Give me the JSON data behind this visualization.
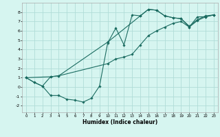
{
  "xlabel": "Humidex (Indice chaleur)",
  "bg_color": "#d6f5f0",
  "grid_color": "#b0ddd8",
  "line_color": "#1a6b60",
  "xlim": [
    -0.5,
    23.5
  ],
  "ylim": [
    -2.7,
    9.0
  ],
  "xticks": [
    0,
    1,
    2,
    3,
    4,
    5,
    6,
    7,
    8,
    9,
    10,
    11,
    12,
    13,
    14,
    15,
    16,
    17,
    18,
    19,
    20,
    21,
    22,
    23
  ],
  "yticks": [
    -2,
    -1,
    0,
    1,
    2,
    3,
    4,
    5,
    6,
    7,
    8
  ],
  "line1_x": [
    0,
    1,
    2,
    3,
    4,
    5,
    6,
    7,
    8,
    9,
    10,
    11,
    12,
    13,
    14,
    15,
    16,
    17,
    18,
    19,
    20,
    21,
    22,
    23
  ],
  "line1_y": [
    1,
    0.5,
    0.1,
    -0.9,
    -0.9,
    -1.3,
    -1.4,
    -1.6,
    -1.2,
    0.1,
    4.7,
    6.3,
    4.5,
    7.7,
    7.6,
    8.3,
    8.2,
    7.6,
    7.4,
    7.3,
    6.5,
    7.2,
    7.6,
    7.7
  ],
  "line2_x": [
    0,
    1,
    2,
    3,
    4,
    10,
    11,
    12,
    13,
    14,
    15,
    16,
    17,
    18,
    19,
    20,
    21,
    22,
    23
  ],
  "line2_y": [
    1,
    0.5,
    0.1,
    1.1,
    1.2,
    2.5,
    3.0,
    3.2,
    3.5,
    4.5,
    5.5,
    6.0,
    6.4,
    6.8,
    7.0,
    6.4,
    7.5,
    7.5,
    7.7
  ],
  "line3_x": [
    0,
    3,
    4,
    10,
    14,
    15,
    16,
    17,
    18,
    19,
    20,
    21,
    22,
    23
  ],
  "line3_y": [
    1,
    1.1,
    1.2,
    4.8,
    7.6,
    8.3,
    8.2,
    7.6,
    7.4,
    7.3,
    6.4,
    7.1,
    7.5,
    7.7
  ]
}
